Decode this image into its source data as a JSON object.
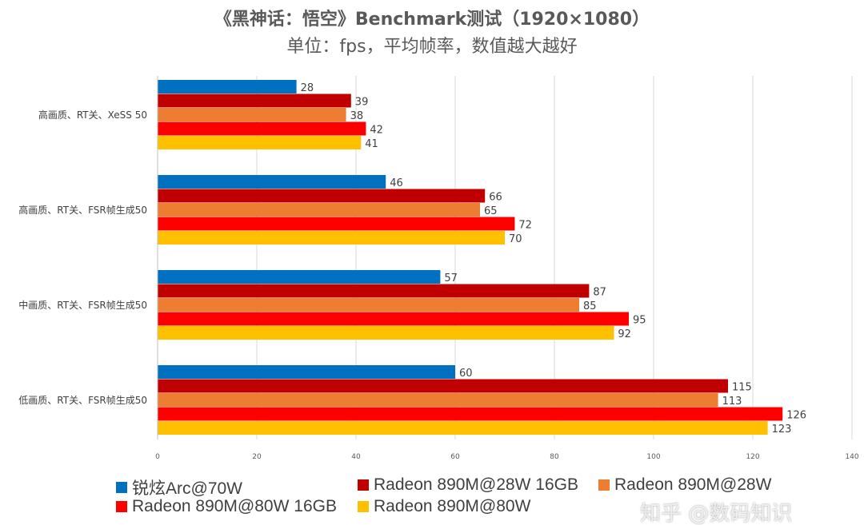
{
  "chart_data": {
    "type": "bar",
    "orientation": "horizontal",
    "title": "《黑神话：悟空》Benchmark测试（1920×1080）",
    "subtitle": "单位：fps，平均帧率，数值越大越好",
    "categories": [
      "高画质、RT关、XeSS 50",
      "高画质、RT关、FSR帧生成50",
      "中画质、RT关、FSR帧生成50",
      "低画质、RT关、FSR帧生成50"
    ],
    "series": [
      {
        "name": "锐炫Arc@70W",
        "color": "#0070C0",
        "values": [
          28,
          46,
          57,
          60
        ]
      },
      {
        "name": "Radeon 890M@28W 16GB",
        "color": "#C00000",
        "values": [
          39,
          66,
          87,
          115
        ]
      },
      {
        "name": "Radeon 890M@28W",
        "color": "#ED7D31",
        "values": [
          38,
          65,
          85,
          113
        ]
      },
      {
        "name": "Radeon 890M@80W 16GB",
        "color": "#FF0000",
        "values": [
          42,
          72,
          95,
          126
        ]
      },
      {
        "name": "Radeon 890M@80W",
        "color": "#FFC000",
        "values": [
          41,
          70,
          92,
          123
        ]
      }
    ],
    "xlim": [
      0,
      140
    ],
    "xticks": [
      "0",
      "20",
      "40",
      "60",
      "80",
      "100",
      "120",
      "140"
    ],
    "grid": true,
    "legend_position": "bottom"
  },
  "watermark": "知乎 @数码知识"
}
